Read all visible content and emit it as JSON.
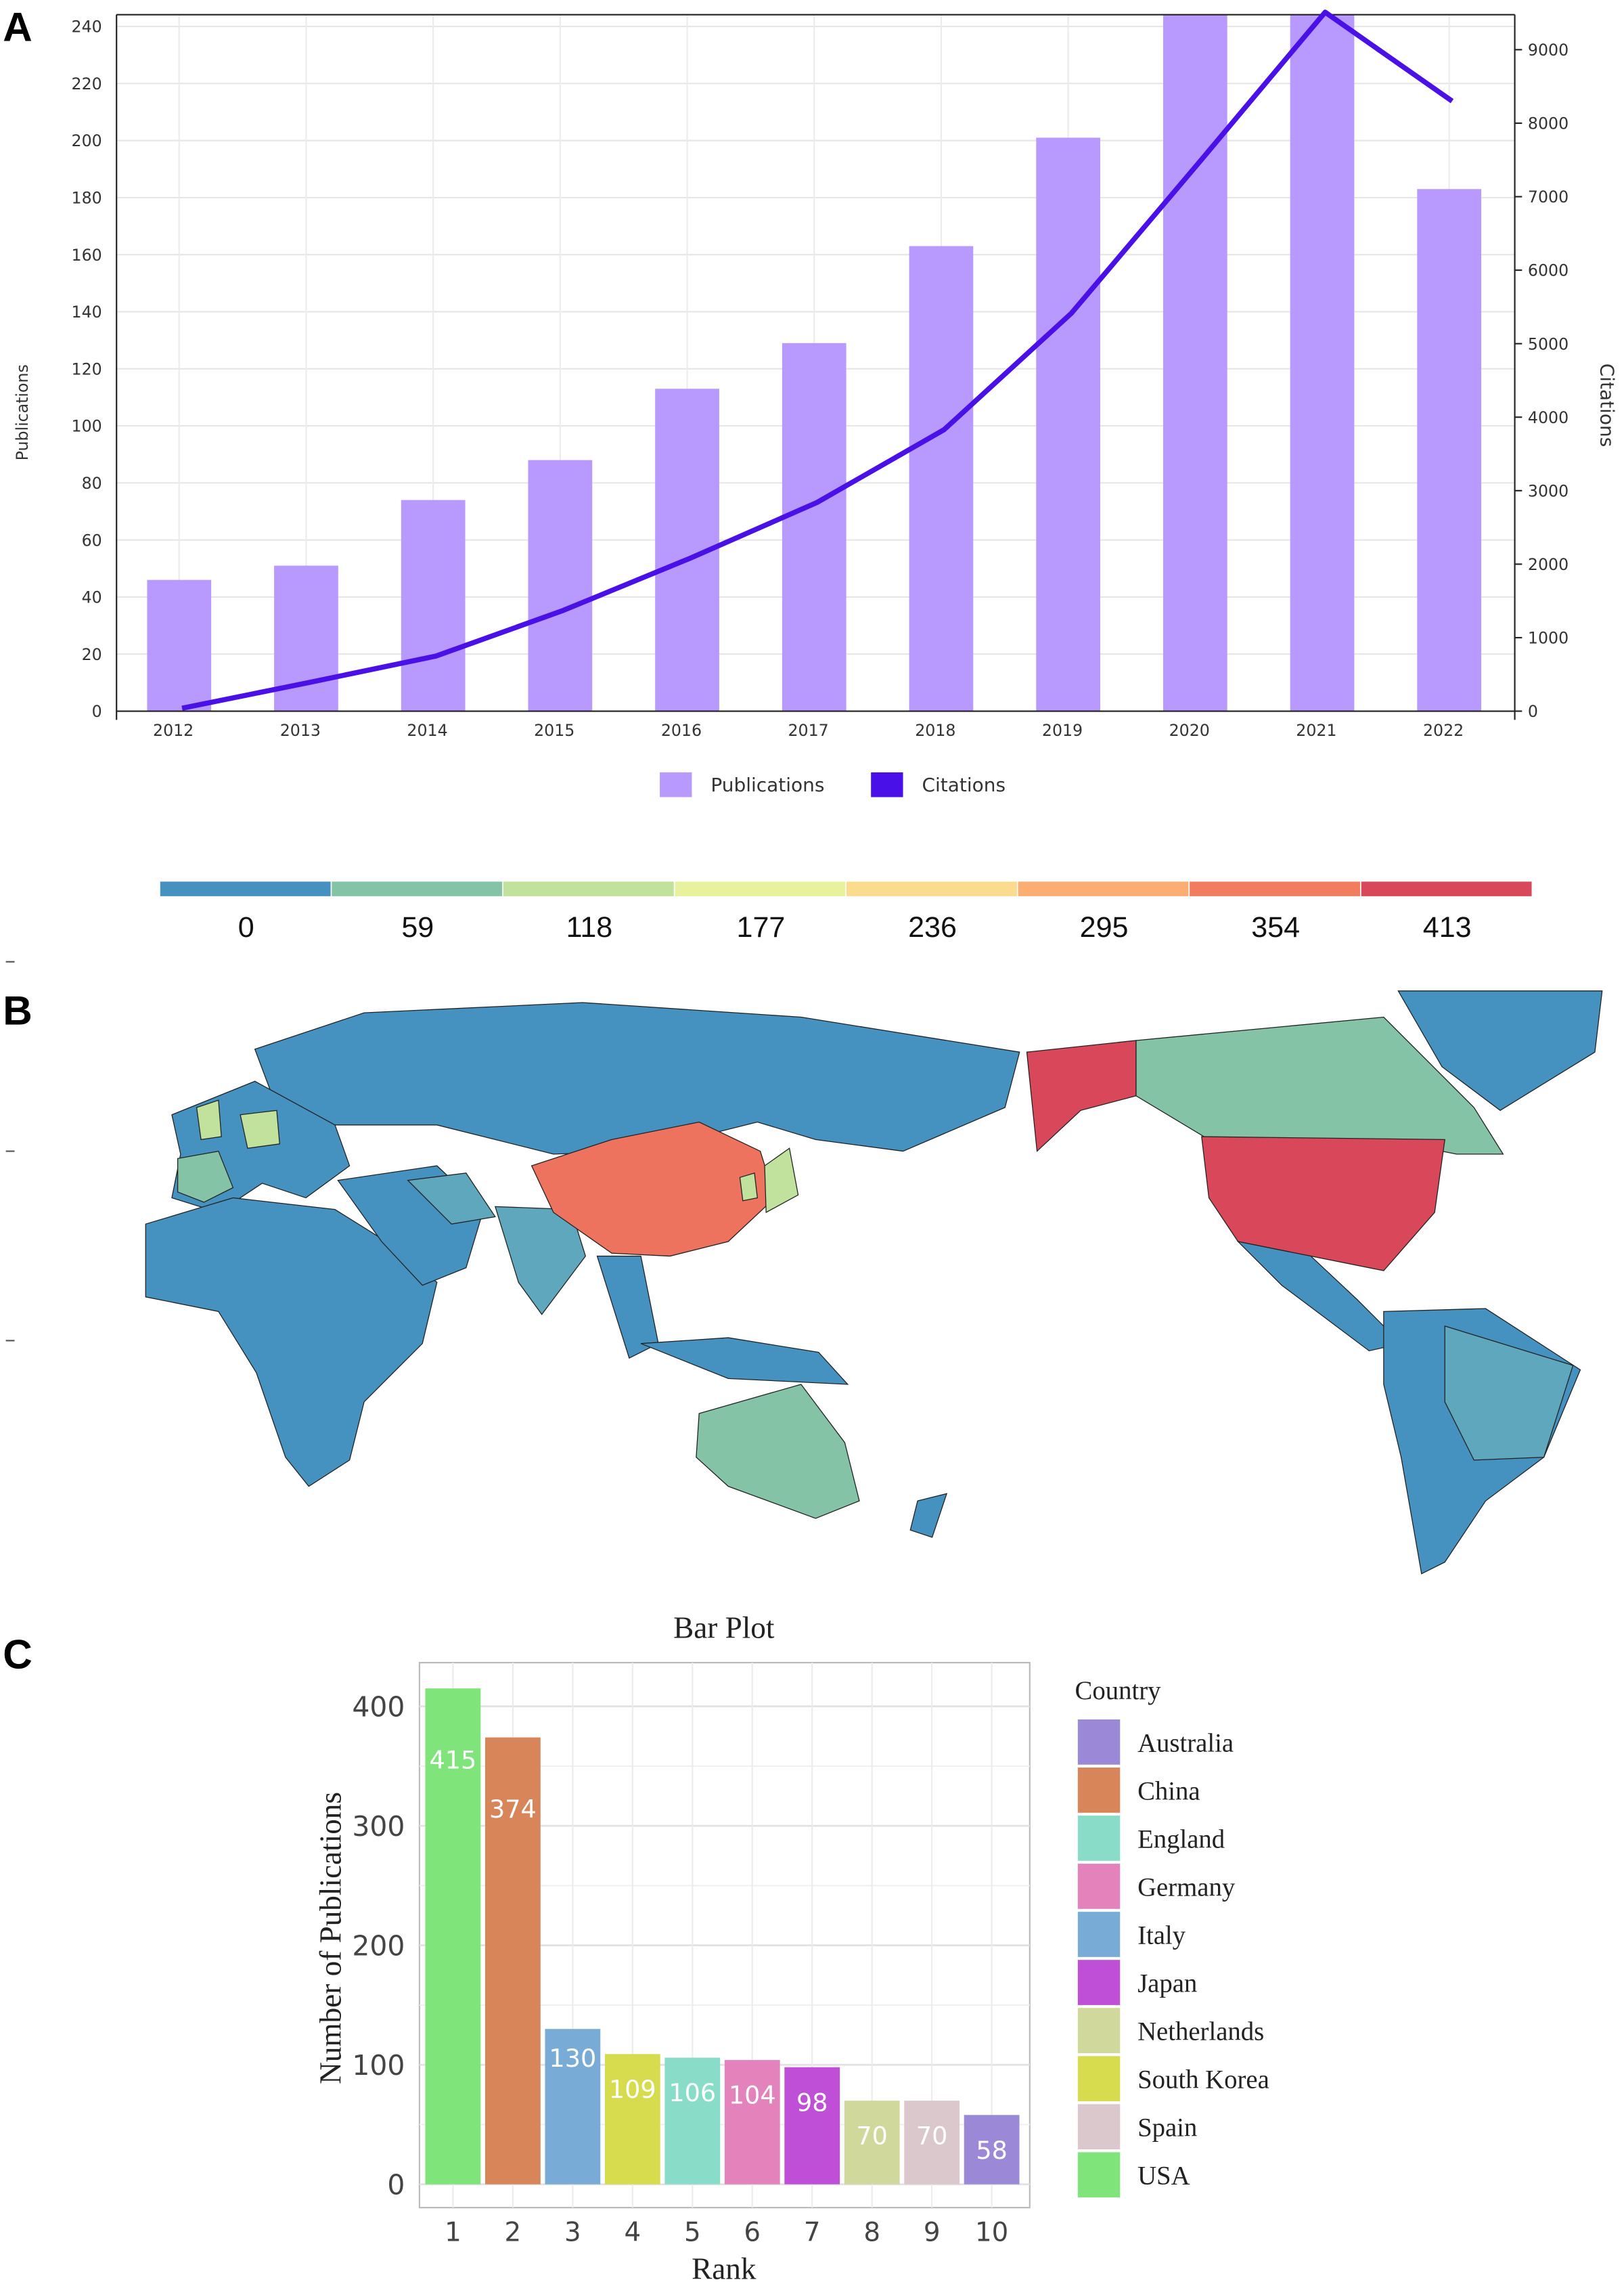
{
  "panels": {
    "a": "A",
    "b": "B",
    "c": "C"
  },
  "chart_data": [
    {
      "type": "bar+line",
      "categories": [
        "2012",
        "2013",
        "2014",
        "2015",
        "2016",
        "2017",
        "2018",
        "2019",
        "2020",
        "2021",
        "2022"
      ],
      "series": [
        {
          "name": "Publications",
          "axis": "left",
          "type": "bar",
          "color": "#b899fd",
          "values": [
            46,
            51,
            74,
            88,
            113,
            129,
            163,
            201,
            250,
            244,
            183
          ]
        },
        {
          "name": "Citations",
          "axis": "right",
          "type": "line",
          "color": "#4a10e8",
          "values": [
            40,
            390,
            750,
            1370,
            2080,
            2840,
            3830,
            5410,
            7450,
            9510,
            8300
          ]
        }
      ],
      "ylabel": "Publications",
      "y2label": "Citations",
      "ylim": [
        0,
        245
      ],
      "y2lim": [
        0,
        9500
      ],
      "yticks": [
        0,
        20,
        40,
        60,
        80,
        100,
        120,
        140,
        160,
        180,
        200,
        220,
        240
      ],
      "y2ticks": [
        0,
        1000,
        2000,
        3000,
        4000,
        5000,
        6000,
        7000,
        8000,
        9000
      ],
      "grid": true,
      "legend": "bottom-center"
    },
    {
      "type": "choropleth",
      "scale_ticks": [
        "0",
        "59",
        "118",
        "177",
        "236",
        "295",
        "354",
        "413"
      ],
      "scale_colors": [
        "#4592c0",
        "#84c3a5",
        "#c1e29c",
        "#e8f19b",
        "#fbdb8d",
        "#fbad72",
        "#f27c5e",
        "#d8475a"
      ],
      "legend": "top"
    },
    {
      "type": "bar",
      "title": "Bar Plot",
      "xlabel": "Rank",
      "ylabel": "Number of Publications",
      "categories": [
        "1",
        "2",
        "3",
        "4",
        "5",
        "6",
        "7",
        "8",
        "9",
        "10"
      ],
      "countries": [
        "USA",
        "China",
        "Italy",
        "South Korea",
        "England",
        "Germany",
        "Japan",
        "Netherlands",
        "Spain",
        "Australia"
      ],
      "values": [
        415,
        374,
        130,
        109,
        106,
        104,
        98,
        70,
        70,
        58
      ],
      "ylim": [
        0,
        435
      ],
      "yticks": [
        0,
        100,
        200,
        300,
        400
      ],
      "grid": true,
      "legend": "right",
      "legend_title": "Country",
      "legend_entries": [
        {
          "label": "Australia",
          "color": "#9b88d6"
        },
        {
          "label": "China",
          "color": "#d8855a"
        },
        {
          "label": "England",
          "color": "#88dcc8"
        },
        {
          "label": "Germany",
          "color": "#e482bc"
        },
        {
          "label": "Italy",
          "color": "#78acd6"
        },
        {
          "label": "Japan",
          "color": "#c04fd8"
        },
        {
          "label": "Netherlands",
          "color": "#d0d89c"
        },
        {
          "label": "South Korea",
          "color": "#d6dc4e"
        },
        {
          "label": "Spain",
          "color": "#dac8cc"
        },
        {
          "label": "USA",
          "color": "#7fe57a"
        }
      ]
    }
  ]
}
